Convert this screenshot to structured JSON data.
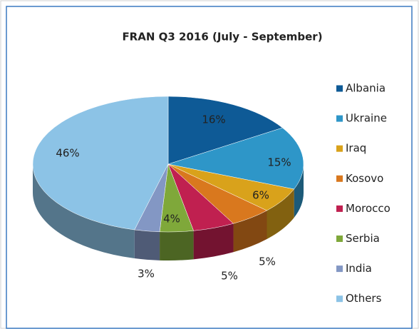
{
  "chart_data": {
    "type": "pie",
    "title": "FRAN  Q3 2016 (July - September)",
    "categories": [
      "Albania",
      "Ukraine",
      "Iraq",
      "Kosovo",
      "Morocco",
      "Serbia",
      "India",
      "Others"
    ],
    "values": [
      16,
      15,
      6,
      5,
      5,
      4,
      3,
      46
    ],
    "value_labels": [
      "16%",
      "15%",
      "6%",
      "5%",
      "5%",
      "4%",
      "3%",
      "46%"
    ],
    "colors": [
      "#0e5a96",
      "#2e96c8",
      "#d9a21b",
      "#d9781e",
      "#c02050",
      "#7fa83a",
      "#8397c4",
      "#8cc3e6"
    ],
    "legend": "right"
  }
}
